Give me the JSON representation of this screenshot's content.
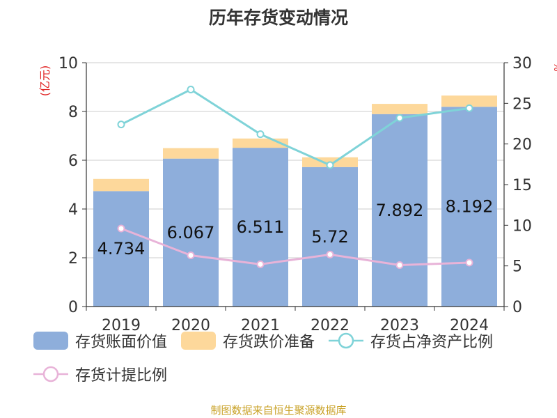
{
  "title": "历年存货变动情况",
  "source": "制图数据来自恒生聚源数据库",
  "chart_data": {
    "type": "bar",
    "stacked": true,
    "categories": [
      "2019",
      "2020",
      "2021",
      "2022",
      "2023",
      "2024"
    ],
    "y_left": {
      "label": "(亿元)",
      "ylim": [
        0,
        10
      ],
      "ticks": [
        "0",
        "2",
        "4",
        "6",
        "8",
        "10"
      ]
    },
    "y_right": {
      "label": "%",
      "ylim": [
        0,
        30
      ],
      "ticks": [
        "0",
        "5",
        "10",
        "15",
        "20",
        "25",
        "30"
      ]
    },
    "series": [
      {
        "name": "存货账面价值",
        "kind": "bar",
        "axis": "left",
        "color": "#8eaedb",
        "values": [
          4.734,
          6.067,
          6.511,
          5.72,
          7.892,
          8.192
        ],
        "labels": [
          "4.734",
          "6.067",
          "6.511",
          "5.72",
          "7.892",
          "8.192"
        ]
      },
      {
        "name": "存货跌价准备",
        "kind": "bar",
        "axis": "left",
        "color": "#fdd89b",
        "values": [
          0.5,
          0.43,
          0.38,
          0.4,
          0.42,
          0.46
        ]
      },
      {
        "name": "存货占净资产比例",
        "kind": "line",
        "axis": "right",
        "color": "#7fd3d8",
        "values": [
          22.4,
          26.7,
          21.2,
          17.4,
          23.2,
          24.4
        ]
      },
      {
        "name": "存货计提比例",
        "kind": "line",
        "axis": "right",
        "color": "#e8b3d8",
        "values": [
          9.6,
          6.3,
          5.2,
          6.4,
          5.1,
          5.4
        ]
      }
    ],
    "grid": true,
    "legend": "bottom"
  }
}
